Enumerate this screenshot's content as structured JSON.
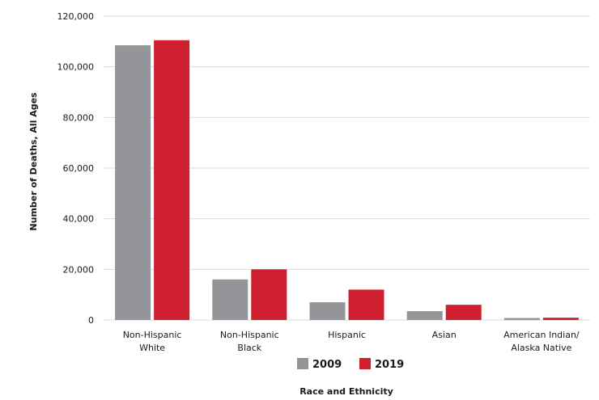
{
  "chart_data": {
    "type": "bar",
    "categories": [
      [
        "Non-Hispanic",
        "White"
      ],
      [
        "Non-Hispanic",
        "Black"
      ],
      [
        "Hispanic"
      ],
      [
        "Asian"
      ],
      [
        "American Indian/",
        "Alaska Native"
      ]
    ],
    "series": [
      {
        "name": "2009",
        "color": "#939598",
        "values": [
          108500,
          16000,
          7000,
          3500,
          800
        ]
      },
      {
        "name": "2019",
        "color": "#cf2030",
        "values": [
          110500,
          20000,
          12000,
          6000,
          900
        ]
      }
    ],
    "title": "",
    "xlabel": "Race and Ethnicity",
    "ylabel": "Number of Deaths, All Ages",
    "ylim": [
      0,
      120000
    ],
    "yticks": [
      0,
      20000,
      40000,
      60000,
      80000,
      100000,
      120000
    ],
    "ytick_labels": [
      "0",
      "20,000",
      "40,000",
      "60,000",
      "80,000",
      "100,000",
      "120,000"
    ],
    "grid": true,
    "legend_position": "bottom-center"
  }
}
